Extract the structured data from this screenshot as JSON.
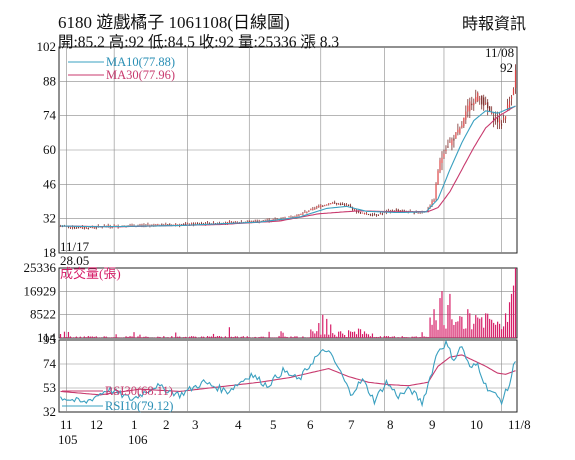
{
  "header": {
    "title": "6180  遊戲橘子 1061108(日線圖)",
    "source": "時報資訊",
    "quote": "開:85.2 高:92 低:84.5 收:92 量:25336 漲 8.3"
  },
  "colors": {
    "ma10": "#3aa0c0",
    "ma30": "#c83a6e",
    "candle": "#7a2a28",
    "volume": "#d61e68",
    "rsi30": "#c83a6e",
    "rsi10": "#3aa0c0",
    "grid": "#8a8a8a"
  },
  "chart_data": [
    {
      "type": "candlestick",
      "panel": "price",
      "y_ticks": [
        "102",
        "88",
        "74",
        "60",
        "46",
        "32",
        "18"
      ],
      "ylim": [
        18,
        102
      ],
      "annotations": {
        "high_date": "11/08",
        "high_value": "92",
        "low_date": "11/17",
        "low_value": "28.05"
      },
      "legend": [
        "MA10(77.88)",
        "MA30(77.96)"
      ],
      "grid": true,
      "series_anchors": {
        "close": [
          [
            0,
            29
          ],
          [
            10,
            28.3
          ],
          [
            22,
            28.8
          ],
          [
            40,
            29.2
          ],
          [
            60,
            29.6
          ],
          [
            80,
            30.2
          ],
          [
            100,
            31
          ],
          [
            110,
            31.8
          ],
          [
            120,
            33.5
          ],
          [
            128,
            36.5
          ],
          [
            136,
            38.5
          ],
          [
            144,
            37.5
          ],
          [
            150,
            34.5
          ],
          [
            158,
            33.5
          ],
          [
            168,
            35.5
          ],
          [
            178,
            34.5
          ],
          [
            184,
            35
          ],
          [
            188,
            40
          ],
          [
            190,
            52
          ],
          [
            193,
            60
          ],
          [
            197,
            64
          ],
          [
            201,
            68
          ],
          [
            206,
            79
          ],
          [
            210,
            82
          ],
          [
            214,
            78
          ],
          [
            218,
            73
          ],
          [
            222,
            71
          ],
          [
            224,
            75
          ],
          [
            226,
            80
          ],
          [
            228,
            86
          ],
          [
            229,
            92
          ]
        ],
        "ma10": [
          [
            0,
            29
          ],
          [
            20,
            28.7
          ],
          [
            60,
            29.2
          ],
          [
            100,
            30.6
          ],
          [
            120,
            32.6
          ],
          [
            134,
            36.2
          ],
          [
            144,
            37
          ],
          [
            154,
            35
          ],
          [
            170,
            34.5
          ],
          [
            184,
            34.8
          ],
          [
            190,
            40
          ],
          [
            196,
            52
          ],
          [
            202,
            63
          ],
          [
            208,
            72
          ],
          [
            214,
            76
          ],
          [
            220,
            75
          ],
          [
            226,
            77
          ],
          [
            229,
            77.88
          ]
        ],
        "ma30": [
          [
            0,
            29
          ],
          [
            30,
            28.7
          ],
          [
            80,
            29.6
          ],
          [
            110,
            31
          ],
          [
            130,
            34
          ],
          [
            150,
            35.2
          ],
          [
            170,
            34.8
          ],
          [
            185,
            34.9
          ],
          [
            190,
            36.5
          ],
          [
            196,
            43
          ],
          [
            202,
            52
          ],
          [
            208,
            61
          ],
          [
            214,
            69
          ],
          [
            220,
            73.5
          ],
          [
            226,
            76.5
          ],
          [
            229,
            77.96
          ]
        ]
      }
    },
    {
      "type": "bar",
      "panel": "volume",
      "label": "成交量(張)",
      "y_ticks": [
        "25336",
        "16929",
        "8522",
        "114"
      ],
      "ylim": [
        114,
        25336
      ],
      "grid": true,
      "spikes": [
        [
          85,
          4000
        ],
        [
          130,
          5500
        ],
        [
          132,
          8500
        ],
        [
          134,
          7000
        ],
        [
          136,
          5000
        ],
        [
          150,
          3500
        ],
        [
          186,
          7500
        ],
        [
          188,
          10500
        ],
        [
          191,
          14500
        ],
        [
          192,
          17000
        ],
        [
          195,
          12000
        ],
        [
          196,
          16000
        ],
        [
          201,
          8000
        ],
        [
          205,
          10500
        ],
        [
          206,
          9000
        ],
        [
          210,
          7500
        ],
        [
          214,
          9000
        ],
        [
          216,
          7000
        ],
        [
          220,
          6000
        ],
        [
          224,
          9000
        ],
        [
          226,
          13000
        ],
        [
          227,
          16000
        ],
        [
          228,
          19000
        ],
        [
          229,
          25336
        ]
      ]
    },
    {
      "type": "line",
      "panel": "rsi",
      "y_ticks": [
        "95",
        "74",
        "53",
        "32"
      ],
      "ylim": [
        32,
        95
      ],
      "legend": [
        "RSI30(68.11)",
        "RSI10(79.12)"
      ],
      "grid": true,
      "series_anchors": {
        "rsi30": [
          [
            0,
            50
          ],
          [
            20,
            47
          ],
          [
            40,
            52
          ],
          [
            60,
            50
          ],
          [
            80,
            54
          ],
          [
            100,
            58
          ],
          [
            115,
            62
          ],
          [
            125,
            66
          ],
          [
            135,
            70
          ],
          [
            145,
            63
          ],
          [
            155,
            58
          ],
          [
            165,
            56
          ],
          [
            175,
            55
          ],
          [
            185,
            58
          ],
          [
            190,
            72
          ],
          [
            196,
            80
          ],
          [
            202,
            82
          ],
          [
            208,
            77
          ],
          [
            214,
            72
          ],
          [
            220,
            66
          ],
          [
            224,
            65
          ],
          [
            229,
            68.11
          ]
        ],
        "rsi10": [
          [
            0,
            45
          ],
          [
            12,
            40
          ],
          [
            24,
            52
          ],
          [
            36,
            43
          ],
          [
            48,
            55
          ],
          [
            60,
            47
          ],
          [
            72,
            58
          ],
          [
            84,
            50
          ],
          [
            96,
            65
          ],
          [
            104,
            55
          ],
          [
            112,
            68
          ],
          [
            120,
            60
          ],
          [
            128,
            79
          ],
          [
            134,
            87
          ],
          [
            140,
            70
          ],
          [
            146,
            48
          ],
          [
            152,
            60
          ],
          [
            158,
            42
          ],
          [
            164,
            58
          ],
          [
            170,
            46
          ],
          [
            176,
            52
          ],
          [
            182,
            40
          ],
          [
            186,
            62
          ],
          [
            190,
            86
          ],
          [
            194,
            92
          ],
          [
            198,
            78
          ],
          [
            202,
            90
          ],
          [
            206,
            70
          ],
          [
            210,
            74
          ],
          [
            214,
            55
          ],
          [
            218,
            48
          ],
          [
            222,
            42
          ],
          [
            226,
            56
          ],
          [
            229,
            79.12
          ]
        ]
      }
    }
  ],
  "x_axis": {
    "labels": [
      "11",
      "12",
      "1",
      "2",
      "3",
      "4",
      "5",
      "6",
      "7",
      "8",
      "9",
      "10",
      "11/8"
    ],
    "year_labels": [
      "105",
      "106"
    ]
  }
}
